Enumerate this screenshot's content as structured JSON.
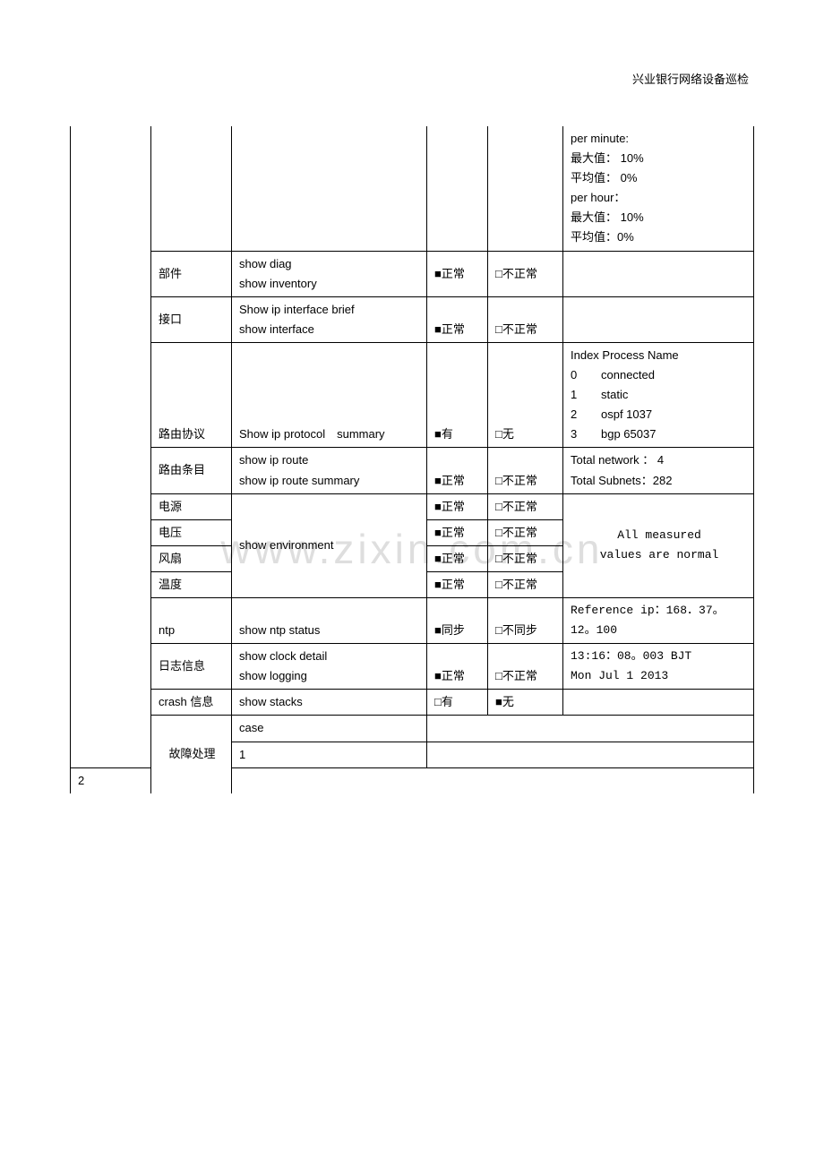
{
  "header": "兴业银行网络设备巡检",
  "watermark": "www.zixin.com.cn",
  "marks": {
    "filled": "■",
    "empty": "□"
  },
  "status": {
    "normal": "正常",
    "abnormal": "不正常",
    "has": "有",
    "none": "无",
    "sync": "同步",
    "nosync": "不同步"
  },
  "cpu_note": {
    "l1": "per minute:",
    "l2": "最大值：  10%",
    "l3": "平均值：  0%",
    "l4": "per hour：",
    "l5": "最大值：  10%",
    "l6": "平均值：0%"
  },
  "rows": {
    "parts": {
      "item": "部件",
      "cmd1": "show diag",
      "cmd2": "show inventory"
    },
    "iface": {
      "item": "接口",
      "cmd1": "Show ip interface brief",
      "cmd2": "show interface"
    },
    "proto": {
      "item": "路由协议",
      "cmd": "Show ip protocol　summary",
      "note_head": "Index Process Name",
      "entries": [
        {
          "idx": "0",
          "name": "connected"
        },
        {
          "idx": "1",
          "name": "static"
        },
        {
          "idx": "2",
          "name": "ospf 1037"
        },
        {
          "idx": "3",
          "name": "bgp 65037"
        }
      ]
    },
    "route": {
      "item": "路由条目",
      "cmd1": "show ip route",
      "cmd2": "show ip route summary",
      "note1": "Total network ：  4",
      "note2": "Total Subnets：282"
    },
    "env": {
      "cmd": "show environment",
      "power": "电源",
      "volt": "电压",
      "fan": "风扇",
      "temp": "温度",
      "note1": "All measured",
      "note2": "values are normal"
    },
    "ntp": {
      "item": "ntp",
      "cmd": "show ntp status",
      "note1": "Reference ip：168．37。",
      "note2": "12。100"
    },
    "log": {
      "item": "日志信息",
      "cmd1": "show clock detail",
      "cmd2": "show logging",
      "note1": "13:16：08。003 BJT",
      "note2": "Mon Jul 1 2013"
    },
    "crash": {
      "item": "crash 信息",
      "cmd": "show stacks"
    }
  },
  "fault": {
    "label": "故障处理",
    "case": "case",
    "r1": "1",
    "r2": "2"
  }
}
